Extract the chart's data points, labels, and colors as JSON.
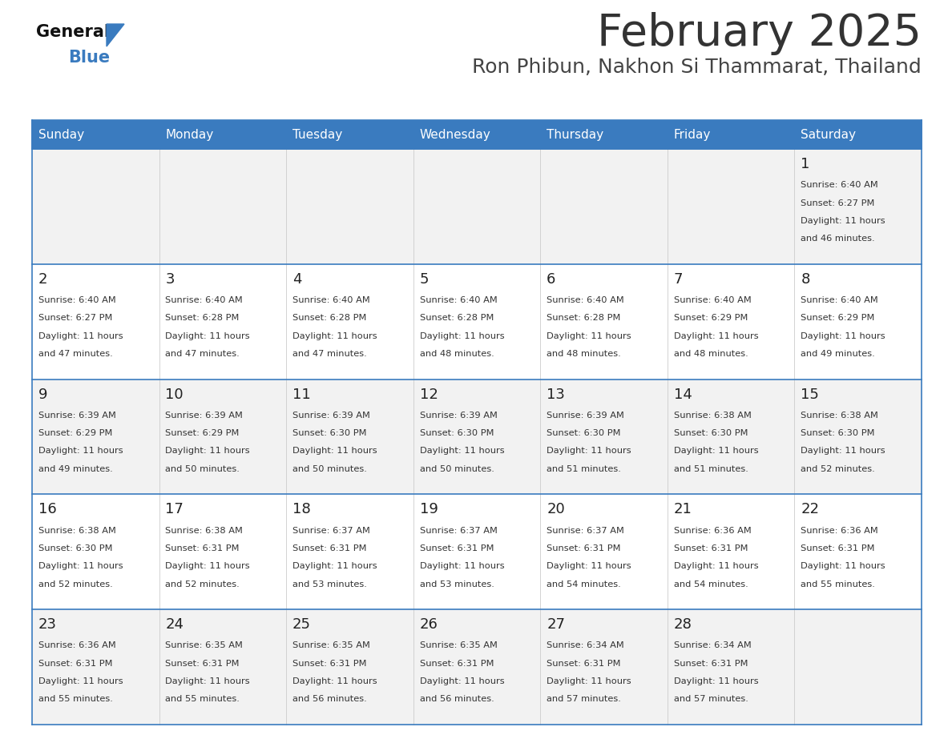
{
  "title": "February 2025",
  "subtitle": "Ron Phibun, Nakhon Si Thammarat, Thailand",
  "days_of_week": [
    "Sunday",
    "Monday",
    "Tuesday",
    "Wednesday",
    "Thursday",
    "Friday",
    "Saturday"
  ],
  "header_bg": "#3a7bbf",
  "header_text": "#FFFFFF",
  "cell_bg_light": "#f2f2f2",
  "cell_bg_white": "#FFFFFF",
  "day_number_color": "#222222",
  "info_text_color": "#333333",
  "border_color": "#3a7bbf",
  "row_divider_color": "#3a7bbf",
  "col_divider_color": "#cccccc",
  "title_color": "#333333",
  "subtitle_color": "#444444",
  "logo_general_color": "#111111",
  "logo_blue_color": "#3a7bbf",
  "calendar_data": [
    [
      null,
      null,
      null,
      null,
      null,
      null,
      {
        "day": 1,
        "sunrise": "6:40 AM",
        "sunset": "6:27 PM",
        "daylight_hours": 11,
        "daylight_minutes": 46
      }
    ],
    [
      {
        "day": 2,
        "sunrise": "6:40 AM",
        "sunset": "6:27 PM",
        "daylight_hours": 11,
        "daylight_minutes": 47
      },
      {
        "day": 3,
        "sunrise": "6:40 AM",
        "sunset": "6:28 PM",
        "daylight_hours": 11,
        "daylight_minutes": 47
      },
      {
        "day": 4,
        "sunrise": "6:40 AM",
        "sunset": "6:28 PM",
        "daylight_hours": 11,
        "daylight_minutes": 47
      },
      {
        "day": 5,
        "sunrise": "6:40 AM",
        "sunset": "6:28 PM",
        "daylight_hours": 11,
        "daylight_minutes": 48
      },
      {
        "day": 6,
        "sunrise": "6:40 AM",
        "sunset": "6:28 PM",
        "daylight_hours": 11,
        "daylight_minutes": 48
      },
      {
        "day": 7,
        "sunrise": "6:40 AM",
        "sunset": "6:29 PM",
        "daylight_hours": 11,
        "daylight_minutes": 48
      },
      {
        "day": 8,
        "sunrise": "6:40 AM",
        "sunset": "6:29 PM",
        "daylight_hours": 11,
        "daylight_minutes": 49
      }
    ],
    [
      {
        "day": 9,
        "sunrise": "6:39 AM",
        "sunset": "6:29 PM",
        "daylight_hours": 11,
        "daylight_minutes": 49
      },
      {
        "day": 10,
        "sunrise": "6:39 AM",
        "sunset": "6:29 PM",
        "daylight_hours": 11,
        "daylight_minutes": 50
      },
      {
        "day": 11,
        "sunrise": "6:39 AM",
        "sunset": "6:30 PM",
        "daylight_hours": 11,
        "daylight_minutes": 50
      },
      {
        "day": 12,
        "sunrise": "6:39 AM",
        "sunset": "6:30 PM",
        "daylight_hours": 11,
        "daylight_minutes": 50
      },
      {
        "day": 13,
        "sunrise": "6:39 AM",
        "sunset": "6:30 PM",
        "daylight_hours": 11,
        "daylight_minutes": 51
      },
      {
        "day": 14,
        "sunrise": "6:38 AM",
        "sunset": "6:30 PM",
        "daylight_hours": 11,
        "daylight_minutes": 51
      },
      {
        "day": 15,
        "sunrise": "6:38 AM",
        "sunset": "6:30 PM",
        "daylight_hours": 11,
        "daylight_minutes": 52
      }
    ],
    [
      {
        "day": 16,
        "sunrise": "6:38 AM",
        "sunset": "6:30 PM",
        "daylight_hours": 11,
        "daylight_minutes": 52
      },
      {
        "day": 17,
        "sunrise": "6:38 AM",
        "sunset": "6:31 PM",
        "daylight_hours": 11,
        "daylight_minutes": 52
      },
      {
        "day": 18,
        "sunrise": "6:37 AM",
        "sunset": "6:31 PM",
        "daylight_hours": 11,
        "daylight_minutes": 53
      },
      {
        "day": 19,
        "sunrise": "6:37 AM",
        "sunset": "6:31 PM",
        "daylight_hours": 11,
        "daylight_minutes": 53
      },
      {
        "day": 20,
        "sunrise": "6:37 AM",
        "sunset": "6:31 PM",
        "daylight_hours": 11,
        "daylight_minutes": 54
      },
      {
        "day": 21,
        "sunrise": "6:36 AM",
        "sunset": "6:31 PM",
        "daylight_hours": 11,
        "daylight_minutes": 54
      },
      {
        "day": 22,
        "sunrise": "6:36 AM",
        "sunset": "6:31 PM",
        "daylight_hours": 11,
        "daylight_minutes": 55
      }
    ],
    [
      {
        "day": 23,
        "sunrise": "6:36 AM",
        "sunset": "6:31 PM",
        "daylight_hours": 11,
        "daylight_minutes": 55
      },
      {
        "day": 24,
        "sunrise": "6:35 AM",
        "sunset": "6:31 PM",
        "daylight_hours": 11,
        "daylight_minutes": 55
      },
      {
        "day": 25,
        "sunrise": "6:35 AM",
        "sunset": "6:31 PM",
        "daylight_hours": 11,
        "daylight_minutes": 56
      },
      {
        "day": 26,
        "sunrise": "6:35 AM",
        "sunset": "6:31 PM",
        "daylight_hours": 11,
        "daylight_minutes": 56
      },
      {
        "day": 27,
        "sunrise": "6:34 AM",
        "sunset": "6:31 PM",
        "daylight_hours": 11,
        "daylight_minutes": 57
      },
      {
        "day": 28,
        "sunrise": "6:34 AM",
        "sunset": "6:31 PM",
        "daylight_hours": 11,
        "daylight_minutes": 57
      },
      null
    ]
  ]
}
